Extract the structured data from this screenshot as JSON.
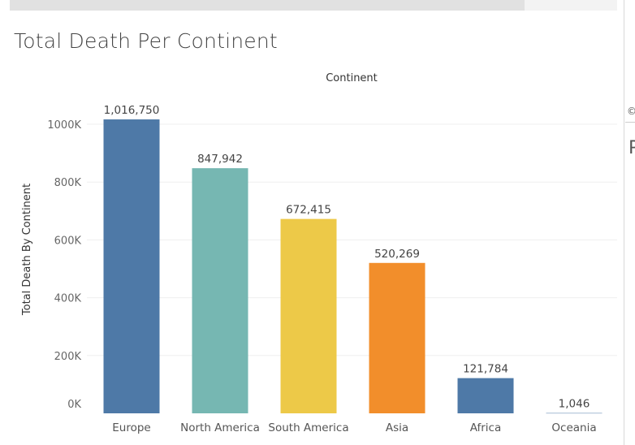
{
  "page": {
    "title": "Total Death Per Continent"
  },
  "chart_data": {
    "type": "bar",
    "title": "Total Death Per Continent",
    "column_header": "Continent",
    "ylabel": "Total Death By Continent",
    "xlabel": "",
    "ylim": [
      0,
      1100000
    ],
    "yticks": [
      0,
      200000,
      400000,
      600000,
      800000,
      1000000
    ],
    "ytick_labels": [
      "0K",
      "200K",
      "400K",
      "600K",
      "800K",
      "1000K"
    ],
    "grid": true,
    "categories": [
      "Europe",
      "North America",
      "South America",
      "Asia",
      "Africa",
      "Oceania"
    ],
    "values": [
      1016750,
      847942,
      672415,
      520269,
      121784,
      1046
    ],
    "data_labels": [
      "1,016,750",
      "847,942",
      "672,415",
      "520,269",
      "121,784",
      "1,046"
    ],
    "colors": [
      "#4e79a7",
      "#76b7b2",
      "#edc948",
      "#f28e2b",
      "#4e79a7",
      "#4e79a7"
    ]
  },
  "side_panel": {
    "mark": "©",
    "letter": "P"
  }
}
